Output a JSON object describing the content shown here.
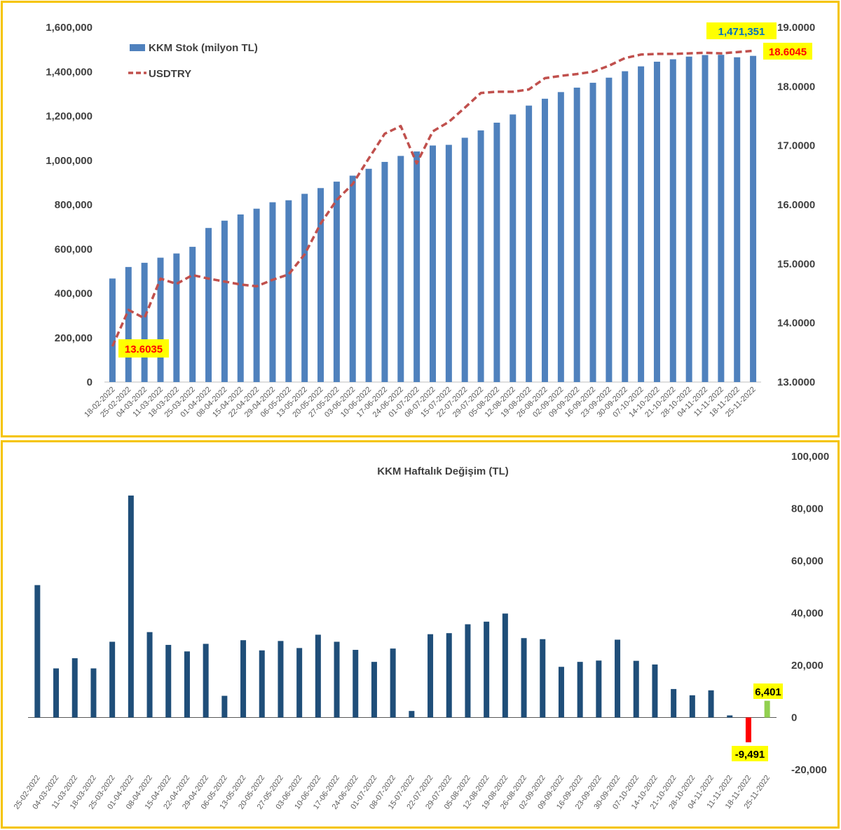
{
  "colors": {
    "border": "#f5c400",
    "stock_bar": "#4f81bd",
    "usd_line": "#c0504d",
    "weekly_bar": "#1f4e79",
    "negative_bar": "#ff0000",
    "positive_last_bar": "#92d050",
    "callout_yellow": "#ffff00",
    "callout_green_bg": "#ffff00",
    "callout_blue_text": "#0070c0",
    "callout_red_text": "#ff0000"
  },
  "chart_data": [
    {
      "type": "bar",
      "legend": {
        "bar_label": "KKM Stok (milyon TL)",
        "line_label": "USDTRY",
        "placement": "top-left"
      },
      "categories": [
        "18-02-2022",
        "25-02-2022",
        "04-03-2022",
        "11-03-2022",
        "18-03-2022",
        "25-03-2022",
        "01-04-2022",
        "08-04-2022",
        "15-04-2022",
        "22-04-2022",
        "29-04-2022",
        "06-05-2022",
        "13-05-2022",
        "20-05-2022",
        "27-05-2022",
        "03-06-2022",
        "10-06-2022",
        "17-06-2022",
        "24-06-2022",
        "01-07-2022",
        "08-07-2022",
        "15-07-2022",
        "22-07-2022",
        "29-07-2022",
        "05-08-2022",
        "12-08-2022",
        "19-08-2022",
        "26-08-2022",
        "02-09-2022",
        "09-09-2022",
        "16-09-2022",
        "23-09-2022",
        "30-09-2022",
        "07-10-2022",
        "14-10-2022",
        "21-10-2022",
        "28-10-2022",
        "04-11-2022",
        "11-11-2022",
        "18-11-2022",
        "25-11-2022"
      ],
      "series": [
        {
          "name": "KKM Stok (milyon TL)",
          "axis": "left",
          "values": [
            467000,
            519000,
            538000,
            561000,
            580000,
            610000,
            695000,
            728000,
            756000,
            782000,
            811000,
            820000,
            849000,
            875000,
            904000,
            931000,
            962000,
            993000,
            1020000,
            1040000,
            1067000,
            1070000,
            1102000,
            1135000,
            1170000,
            1207000,
            1247000,
            1278000,
            1308000,
            1328000,
            1350000,
            1373000,
            1402000,
            1424000,
            1445000,
            1456000,
            1468000,
            1475000,
            1476000,
            1465000,
            1471351
          ]
        },
        {
          "name": "USDTRY",
          "axis": "right",
          "values": [
            13.6035,
            14.22,
            14.08,
            14.75,
            14.66,
            14.81,
            14.75,
            14.7,
            14.65,
            14.62,
            14.73,
            14.82,
            15.16,
            15.68,
            16.08,
            16.35,
            16.78,
            17.2,
            17.33,
            16.7,
            17.24,
            17.4,
            17.64,
            17.89,
            17.91,
            17.91,
            17.95,
            18.14,
            18.18,
            18.21,
            18.25,
            18.35,
            18.48,
            18.54,
            18.55,
            18.55,
            18.56,
            18.57,
            18.56,
            18.58,
            18.6045
          ]
        }
      ],
      "y_left": {
        "min": 0,
        "max": 1600000,
        "ticks": [
          "0",
          "200,000",
          "400,000",
          "600,000",
          "800,000",
          "1,000,000",
          "1,200,000",
          "1,400,000",
          "1,600,000"
        ]
      },
      "y_right": {
        "min": 13,
        "max": 19,
        "ticks": [
          "13.0000",
          "14.0000",
          "15.0000",
          "16.0000",
          "17.0000",
          "18.0000",
          "19.0000"
        ]
      },
      "annotations": {
        "last_stock": "1,471,351",
        "first_usd": "13.6035",
        "last_usd": "18.6045"
      },
      "grid": false
    },
    {
      "type": "bar",
      "title": "KKM Haftalık Değişim (TL)",
      "categories": [
        "25-02-2022",
        "04-03-2022",
        "11-03-2022",
        "18-03-2022",
        "25-03-2022",
        "01-04-2022",
        "08-04-2022",
        "15-04-2022",
        "22-04-2022",
        "29-04-2022",
        "06-05-2022",
        "13-05-2022",
        "20-05-2022",
        "27-05-2022",
        "03-06-2022",
        "10-06-2022",
        "17-06-2022",
        "24-06-2022",
        "01-07-2022",
        "08-07-2022",
        "15-07-2022",
        "22-07-2022",
        "29-07-2022",
        "05-08-2022",
        "12-08-2022",
        "19-08-2022",
        "26-08-2022",
        "02-09-2022",
        "09-09-2022",
        "16-09-2022",
        "23-09-2022",
        "30-09-2022",
        "07-10-2022",
        "14-10-2022",
        "21-10-2022",
        "28-10-2022",
        "04-11-2022",
        "11-11-2022",
        "18-11-2022",
        "25-11-2022"
      ],
      "series": [
        {
          "name": "KKM Haftalık Değişim (TL)",
          "values": [
            50700,
            18800,
            22700,
            18800,
            29000,
            85000,
            32700,
            27800,
            25300,
            28200,
            8300,
            29600,
            25700,
            29300,
            26600,
            31700,
            29000,
            25900,
            21300,
            26400,
            2500,
            31900,
            32300,
            35700,
            36700,
            39800,
            30400,
            30000,
            19400,
            21300,
            21800,
            29800,
            21700,
            20300,
            10900,
            8500,
            10400,
            800,
            -9491,
            6401
          ]
        }
      ],
      "y_right": {
        "min": -20000,
        "max": 100000,
        "ticks": [
          "-20,000",
          "0",
          "20,000",
          "40,000",
          "60,000",
          "80,000",
          "100,000"
        ]
      },
      "annotations": {
        "negative_value": "-9,491",
        "last_value": "6,401"
      },
      "grid": false
    }
  ]
}
